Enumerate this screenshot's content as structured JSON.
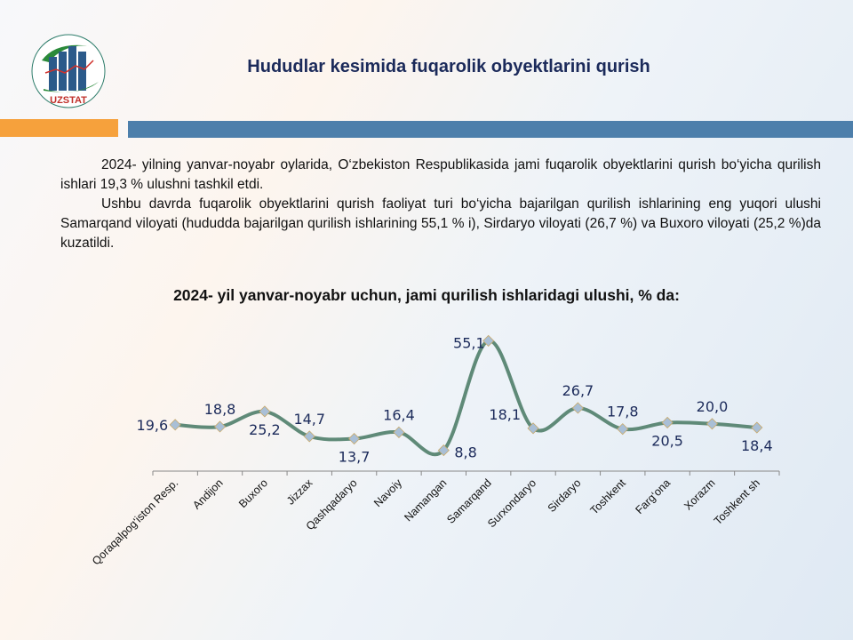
{
  "header": {
    "logo_text": "UZSTAT",
    "title": "Hududlar kesimida fuqarolik obyektlarini qurish"
  },
  "paragraphs": [
    "2024- yilning yanvar-noyabr oylarida, O‘zbekiston Respublikasida jami fuqarolik obyektlarini qurish bo‘yicha qurilish ishlari 19,3 % ulushni tashkil etdi.",
    "Ushbu davrda fuqarolik obyektlarini qurish faoliyat turi bo‘yicha bajarilgan qurilish ishlarining eng yuqori ulushi Samarqand viloyati (hududda bajarilgan qurilish ishlarining 55,1 % i), Sirdaryo viloyati (26,7 %) va Buxoro viloyati (25,2 %)da kuzatildi."
  ],
  "chart_data": {
    "type": "line",
    "title": "2024- yil yanvar-noyabr uchun, jami qurilish ishlaridagi ulushi, % da:",
    "categories": [
      "Qoraqalpog‘iston Resp.",
      "Andijon",
      "Buxoro",
      "Jizzax",
      "Qashqadaryo",
      "Navoiy",
      "Namangan",
      "Samarqand",
      "Surxondaryo",
      "Sirdaryo",
      "Toshkent",
      "Farg‘ona",
      "Xorazm",
      "Toshkent sh"
    ],
    "values": [
      19.6,
      18.8,
      25.2,
      14.7,
      13.7,
      16.4,
      8.8,
      55.1,
      18.1,
      26.7,
      17.8,
      20.5,
      20.0,
      18.4
    ],
    "labels": [
      "19,6",
      "18,8",
      "25,2",
      "14,7",
      "13,7",
      "16,4",
      "8,8",
      "55,1",
      "18,1",
      "26,7",
      "17,8",
      "20,5",
      "20,0",
      "18,4"
    ],
    "label_position": [
      "left",
      "above",
      "below",
      "above",
      "below",
      "above",
      "right",
      "left",
      "left",
      "above",
      "above",
      "below",
      "above",
      "below"
    ],
    "line_color": "#5f8a78",
    "marker_color": "#a9bfd6",
    "ylim": [
      0,
      60
    ],
    "grid": false
  }
}
